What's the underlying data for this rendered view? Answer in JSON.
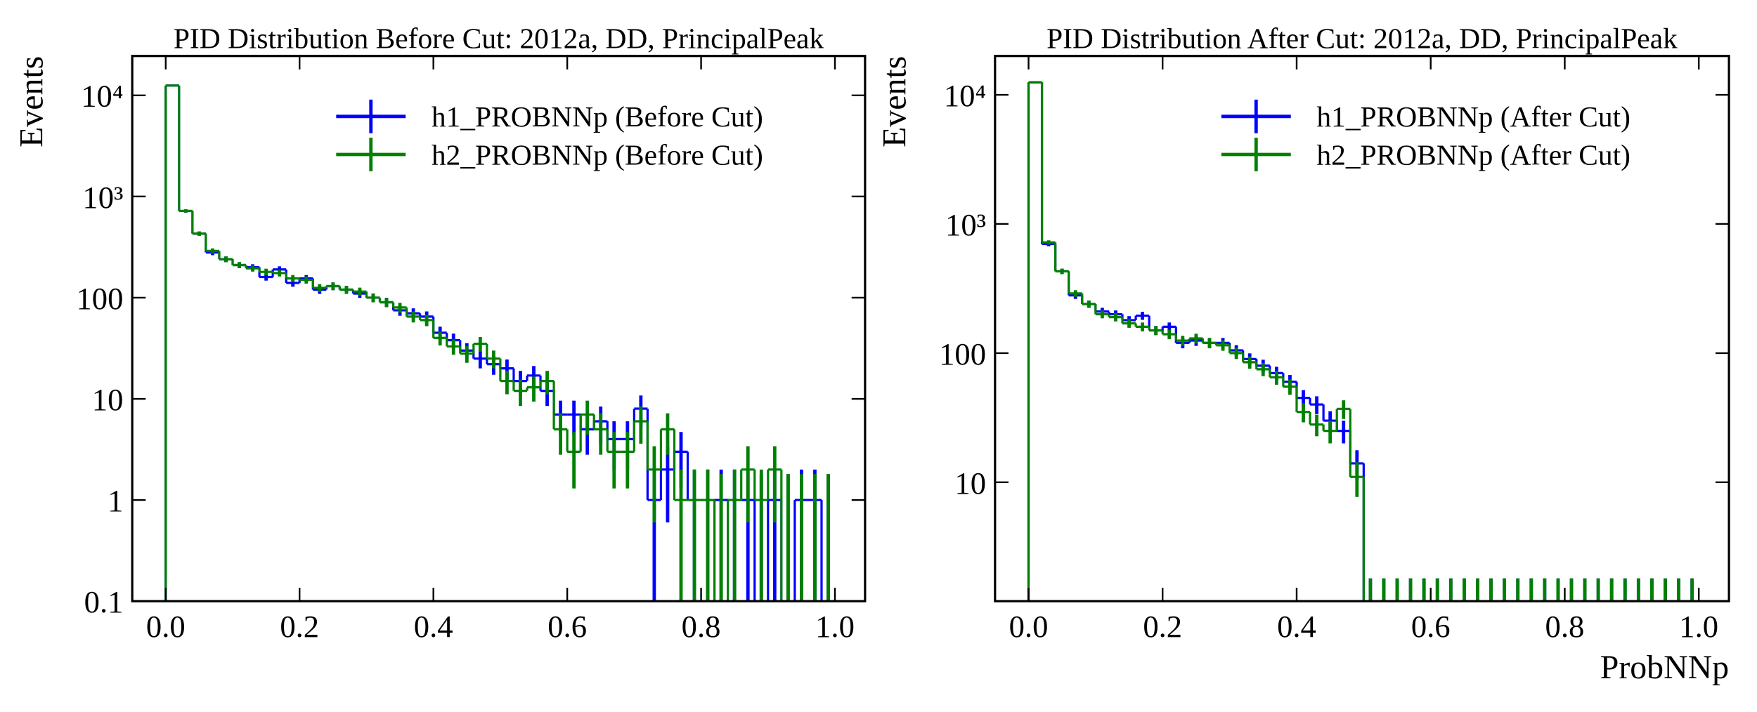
{
  "chart_data": [
    {
      "type": "histogram",
      "title": "PID Distribution Before Cut: 2012a, DD, PrincipalPeak",
      "ylabel": "Events",
      "yscale": "log",
      "legend": "upper right",
      "bins": [
        0,
        0.02,
        0.04,
        0.06,
        0.08,
        0.1,
        0.12,
        0.14,
        0.16,
        0.18,
        0.2,
        0.22,
        0.24,
        0.26,
        0.28,
        0.3,
        0.32,
        0.34,
        0.36,
        0.38,
        0.4,
        0.42,
        0.44,
        0.46,
        0.48,
        0.5,
        0.52,
        0.54,
        0.56,
        0.58,
        0.6,
        0.62,
        0.64,
        0.66,
        0.68,
        0.7,
        0.72,
        0.74,
        0.76,
        0.78,
        0.8,
        0.82,
        0.84,
        0.86,
        0.88,
        0.9,
        0.92,
        0.94,
        0.96,
        0.98,
        1
      ],
      "xlim": [
        -0.05,
        1.045
      ],
      "ylim": [
        0.1,
        24500
      ],
      "xticks": [
        {
          "value": 0,
          "label": "0.0"
        },
        0.2,
        0.4,
        0.6,
        0.8,
        {
          "value": 1,
          "label": "1.0"
        }
      ],
      "yticks": [
        0.1,
        1,
        10,
        100,
        {
          "value": 1000,
          "label": "10³"
        },
        {
          "value": 10000,
          "label": "10⁴"
        }
      ],
      "series": [
        {
          "name": "h1_PROBNNp (Before Cut)",
          "color": "#0000ff",
          "values": [
            12500,
            720,
            430,
            280,
            240,
            210,
            200,
            160,
            190,
            140,
            155,
            120,
            130,
            120,
            110,
            100,
            90,
            75,
            70,
            65,
            45,
            38,
            30,
            25,
            22,
            20,
            15,
            17,
            12,
            7,
            7,
            5,
            6,
            4,
            4,
            8,
            1,
            2,
            3,
            1,
            1,
            1,
            1,
            1,
            0,
            1,
            0,
            1,
            1,
            0
          ],
          "errors": [
            112,
            27,
            21,
            17,
            15.5,
            14.5,
            14,
            12.6,
            14,
            11.8,
            12.4,
            11,
            11.4,
            11,
            10.5,
            10,
            9.5,
            8.7,
            8.4,
            8.1,
            6.7,
            6.2,
            5.5,
            5,
            4.7,
            4.5,
            3.9,
            4.1,
            3.5,
            2.6,
            2.6,
            2.2,
            2.4,
            2,
            2,
            2.8,
            1,
            1.4,
            1.7,
            1,
            1,
            1,
            1,
            1,
            1.8,
            1,
            1.8,
            1,
            1,
            1.8
          ]
        },
        {
          "name": "h2_PROBNNp (Before Cut)",
          "color": "#008000",
          "values": [
            12500,
            720,
            430,
            290,
            240,
            210,
            195,
            180,
            175,
            155,
            150,
            125,
            130,
            120,
            115,
            100,
            90,
            80,
            65,
            60,
            40,
            33,
            28,
            35,
            25,
            15,
            12,
            13,
            15,
            5,
            3,
            7,
            5,
            3,
            3,
            6,
            2,
            5,
            1,
            1,
            1,
            0,
            1,
            2,
            1,
            2,
            0,
            0,
            0,
            0
          ],
          "errors": [
            112,
            27,
            21,
            17,
            15.5,
            14.5,
            14,
            13.4,
            13,
            12.4,
            12.2,
            11.2,
            11.4,
            11,
            10.7,
            10,
            9.5,
            8.9,
            8.1,
            7.7,
            6.3,
            5.7,
            5.3,
            5.9,
            5,
            3.9,
            3.5,
            3.6,
            3.9,
            2.2,
            1.7,
            2.6,
            2.2,
            1.7,
            1.7,
            2.4,
            1.4,
            2.2,
            1,
            1,
            1,
            1.8,
            1,
            1.4,
            1,
            1.4,
            1.8,
            1.8,
            1.8,
            1.8
          ]
        }
      ]
    },
    {
      "type": "histogram",
      "title": "PID Distribution After Cut: 2012a, DD, PrincipalPeak",
      "ylabel": "Events",
      "xlabel": "ProbNNp",
      "yscale": "log",
      "legend": "upper right",
      "bins": [
        0,
        0.02,
        0.04,
        0.06,
        0.08,
        0.1,
        0.12,
        0.14,
        0.16,
        0.18,
        0.2,
        0.22,
        0.24,
        0.26,
        0.28,
        0.3,
        0.32,
        0.34,
        0.36,
        0.38,
        0.4,
        0.42,
        0.44,
        0.46,
        0.48,
        0.5,
        0.52,
        0.54,
        0.56,
        0.58,
        0.6,
        0.62,
        0.64,
        0.66,
        0.68,
        0.7,
        0.72,
        0.74,
        0.76,
        0.78,
        0.8,
        0.82,
        0.84,
        0.86,
        0.88,
        0.9,
        0.92,
        0.94,
        0.96,
        0.98,
        1
      ],
      "xlim": [
        -0.05,
        1.045
      ],
      "ylim": [
        1.2,
        20000
      ],
      "xticks": [
        {
          "value": 0,
          "label": "0.0"
        },
        0.2,
        0.4,
        0.6,
        0.8,
        {
          "value": 1,
          "label": "1.0"
        }
      ],
      "yticks": [
        10,
        100,
        {
          "value": 1000,
          "label": "10³"
        },
        {
          "value": 10000,
          "label": "10⁴"
        }
      ],
      "series": [
        {
          "name": "h1_PROBNNp (After Cut)",
          "color": "#0000ff",
          "values": [
            12500,
            700,
            430,
            280,
            240,
            210,
            200,
            180,
            195,
            150,
            160,
            120,
            125,
            120,
            120,
            105,
            90,
            80,
            70,
            60,
            45,
            40,
            30,
            25,
            14,
            0,
            0,
            0,
            0,
            0,
            0,
            0,
            0,
            0,
            0,
            0,
            0,
            0,
            0,
            0,
            0,
            0,
            0,
            0,
            0,
            0,
            0,
            0,
            0,
            0
          ],
          "errors": [
            112,
            27,
            21,
            17,
            15.5,
            14.5,
            14,
            13.4,
            14,
            12.2,
            12.6,
            11,
            11.2,
            11,
            11,
            10.2,
            9.5,
            8.9,
            8.4,
            7.7,
            6.7,
            6.3,
            5.5,
            5,
            3.7,
            1.8,
            1.8,
            1.8,
            1.8,
            1.8,
            1.8,
            1.8,
            1.8,
            1.8,
            1.8,
            1.8,
            1.8,
            1.8,
            1.8,
            1.8,
            1.8,
            1.8,
            1.8,
            1.8,
            1.8,
            1.8,
            1.8,
            1.8,
            1.8,
            1.8
          ]
        },
        {
          "name": "h2_PROBNNp (After Cut)",
          "color": "#008000",
          "values": [
            12500,
            720,
            430,
            290,
            240,
            200,
            190,
            170,
            160,
            150,
            140,
            125,
            130,
            120,
            115,
            100,
            85,
            75,
            65,
            55,
            35,
            28,
            25,
            37,
            11,
            0,
            0,
            0,
            0,
            0,
            0,
            0,
            0,
            0,
            0,
            0,
            0,
            0,
            0,
            0,
            0,
            0,
            0,
            0,
            0,
            0,
            0,
            0,
            0,
            0
          ],
          "errors": [
            112,
            27,
            21,
            17,
            15.5,
            14,
            14,
            13,
            12.6,
            12.2,
            11.8,
            11.2,
            11.4,
            11,
            10.7,
            10,
            9.2,
            8.7,
            8.1,
            7.4,
            5.9,
            5.3,
            5,
            6.1,
            3.3,
            1.8,
            1.8,
            1.8,
            1.8,
            1.8,
            1.8,
            1.8,
            1.8,
            1.8,
            1.8,
            1.8,
            1.8,
            1.8,
            1.8,
            1.8,
            1.8,
            1.8,
            1.8,
            1.8,
            1.8,
            1.8,
            1.8,
            1.8,
            1.8,
            1.8
          ]
        }
      ]
    }
  ]
}
